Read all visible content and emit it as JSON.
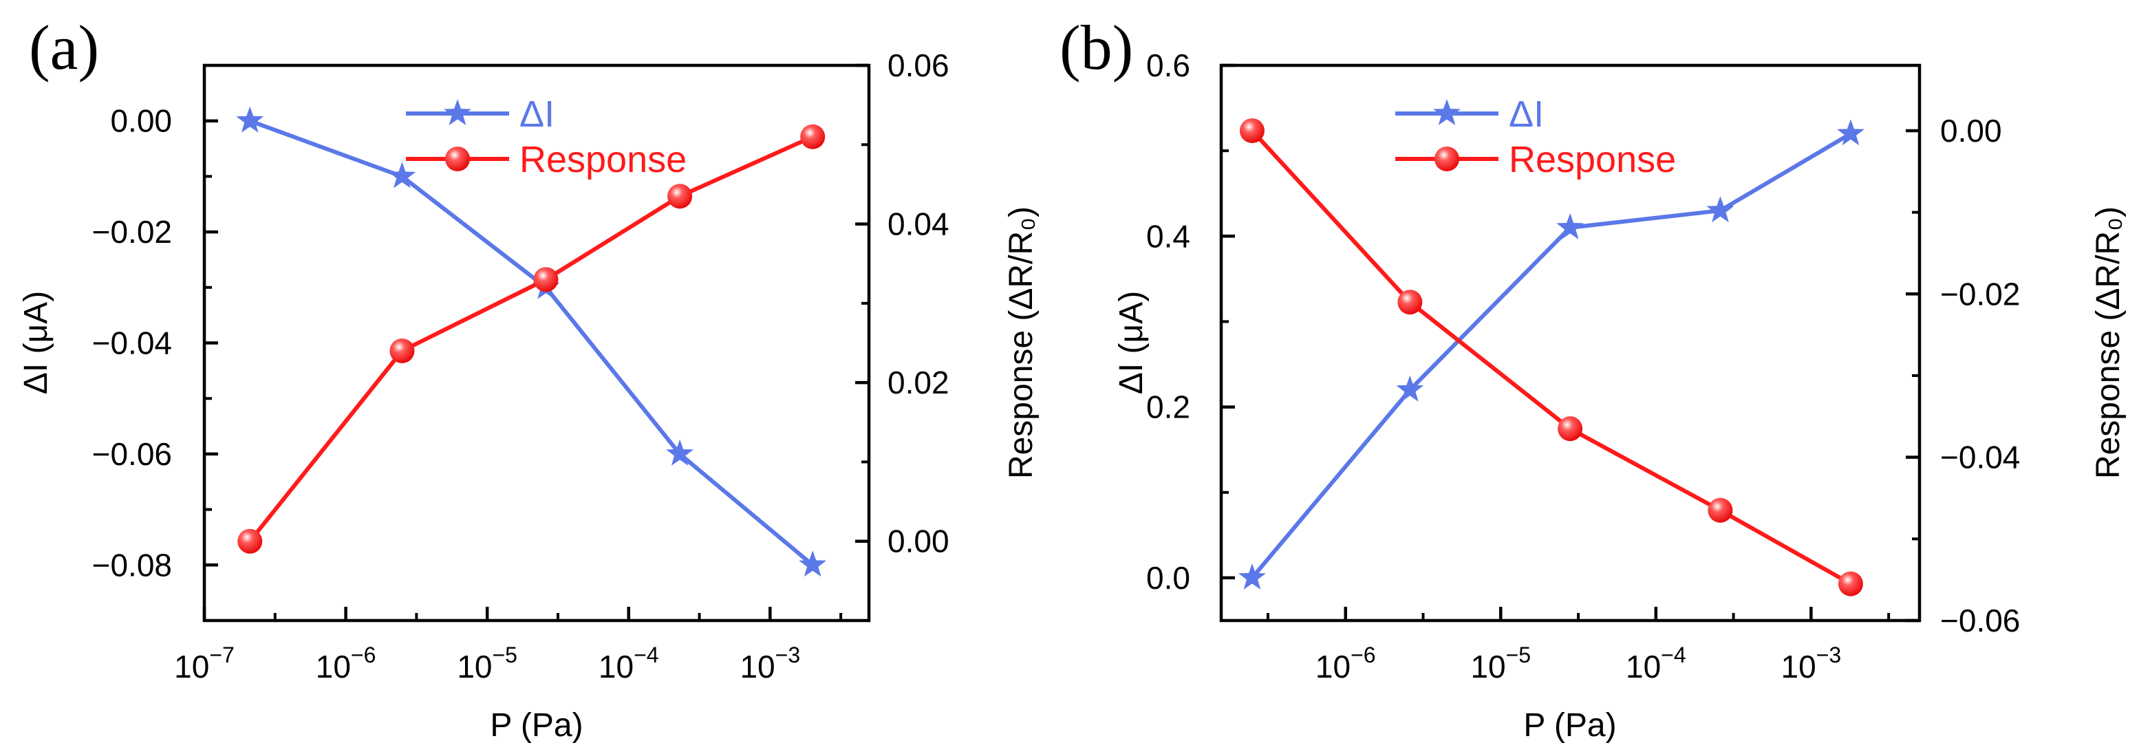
{
  "chart_data": [
    {
      "type": "line",
      "panel_label": "(a)",
      "xlabel": "P (Pa)",
      "ylabel_left": "ΔI (μA)",
      "ylabel_right": "Response (ΔR/R₀)",
      "x_scale": "log",
      "xlim": [
        1e-07,
        0.005
      ],
      "ylim_left": [
        -0.09,
        0.01
      ],
      "ylim_right": [
        -0.01,
        0.06
      ],
      "x_ticks": [
        {
          "value": 1e-07,
          "base": "10",
          "exp": "−7"
        },
        {
          "value": 1e-06,
          "base": "10",
          "exp": "−6"
        },
        {
          "value": 1e-05,
          "base": "10",
          "exp": "−5"
        },
        {
          "value": 0.0001,
          "base": "10",
          "exp": "−4"
        },
        {
          "value": 0.001,
          "base": "10",
          "exp": "−3"
        }
      ],
      "y_ticks_left": [
        {
          "value": 0.0,
          "label": "0.00"
        },
        {
          "value": -0.02,
          "label": "−0.02"
        },
        {
          "value": -0.04,
          "label": "−0.04"
        },
        {
          "value": -0.06,
          "label": "−0.06"
        },
        {
          "value": -0.08,
          "label": "−0.08"
        }
      ],
      "y_ticks_right": [
        {
          "value": 0.0,
          "label": "0.00"
        },
        {
          "value": 0.02,
          "label": "0.02"
        },
        {
          "value": 0.04,
          "label": "0.04"
        },
        {
          "value": 0.06,
          "label": "0.06"
        }
      ],
      "legend_position": "top-center",
      "series": [
        {
          "name": "ΔI",
          "axis": "left",
          "marker": "star",
          "color": "#5b78e8",
          "x": [
            2.1e-07,
            2.5e-06,
            2.6e-05,
            0.00023,
            0.002
          ],
          "y": [
            0.0,
            -0.01,
            -0.03,
            -0.06,
            -0.08
          ]
        },
        {
          "name": "Response",
          "axis": "right",
          "marker": "sphere",
          "color": "#ff1a1a",
          "x": [
            2.1e-07,
            2.5e-06,
            2.6e-05,
            0.00023,
            0.002
          ],
          "y": [
            0.0,
            0.024,
            0.033,
            0.0435,
            0.051
          ]
        }
      ]
    },
    {
      "type": "line",
      "panel_label": "(b)",
      "xlabel": "P (Pa)",
      "ylabel_left": "ΔI (μA)",
      "ylabel_right": "Response (ΔR/R₀)",
      "x_scale": "log",
      "xlim": [
        1.58e-07,
        0.005
      ],
      "ylim_left": [
        -0.05,
        0.6
      ],
      "ylim_right": [
        -0.06,
        0.008
      ],
      "x_ticks": [
        {
          "value": 1e-06,
          "base": "10",
          "exp": "−6"
        },
        {
          "value": 1e-05,
          "base": "10",
          "exp": "−5"
        },
        {
          "value": 0.0001,
          "base": "10",
          "exp": "−4"
        },
        {
          "value": 0.001,
          "base": "10",
          "exp": "−3"
        }
      ],
      "y_ticks_left": [
        {
          "value": 0.0,
          "label": "0.0"
        },
        {
          "value": 0.2,
          "label": "0.2"
        },
        {
          "value": 0.4,
          "label": "0.4"
        },
        {
          "value": 0.6,
          "label": "0.6"
        }
      ],
      "y_ticks_right": [
        {
          "value": 0.0,
          "label": "0.00"
        },
        {
          "value": -0.02,
          "label": "−0.02"
        },
        {
          "value": -0.04,
          "label": "−0.04"
        },
        {
          "value": -0.06,
          "label": "−0.06"
        }
      ],
      "legend_position": "top-center",
      "series": [
        {
          "name": "ΔI",
          "axis": "left",
          "marker": "star",
          "color": "#5b78e8",
          "x": [
            2.5e-07,
            2.6e-06,
            2.8e-05,
            0.00026,
            0.0018
          ],
          "y": [
            0.0,
            0.22,
            0.41,
            0.43,
            0.52
          ]
        },
        {
          "name": "Response",
          "axis": "right",
          "marker": "sphere",
          "color": "#ff1a1a",
          "x": [
            2.5e-07,
            2.6e-06,
            2.8e-05,
            0.00026,
            0.0018
          ],
          "y": [
            0.0,
            -0.021,
            -0.0365,
            -0.0465,
            -0.0555
          ]
        }
      ]
    }
  ]
}
